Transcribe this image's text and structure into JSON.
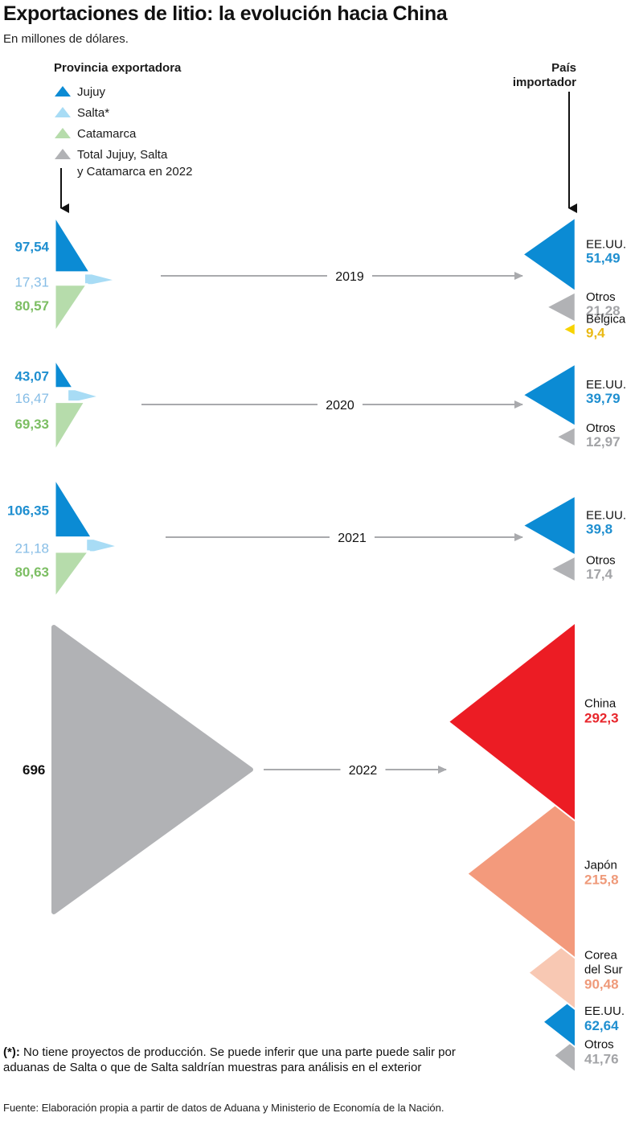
{
  "title": "Exportaciones de litio: la evolución hacia China",
  "subtitle": "En millones de dólares.",
  "legend": {
    "title": "Provincia exportadora",
    "items": [
      {
        "label": "Jujuy",
        "color": "#0b8bd4"
      },
      {
        "label": "Salta*",
        "color": "#a8dcf5"
      },
      {
        "label": "Catamarca",
        "color": "#b6dcab"
      },
      {
        "label": "Total Jujuy, Salta\ny Catamarca en 2022",
        "color": "#b1b2b5"
      }
    ]
  },
  "importer_title": "País\nimportador",
  "chart_data": {
    "type": "flow",
    "years": [
      {
        "year": "2019",
        "exporters": [
          {
            "name": "Jujuy",
            "value": 97.54,
            "label": "97,54",
            "color": "#0b8bd4",
            "text_color": "#1f8fd0"
          },
          {
            "name": "Salta",
            "value": 17.31,
            "label": "17,31",
            "color": "#a8dcf5",
            "text_color": "#86bde6"
          },
          {
            "name": "Catamarca",
            "value": 80.57,
            "label": "80,57",
            "color": "#b6dcab",
            "text_color": "#7cbe63"
          }
        ],
        "importers": [
          {
            "name": "EE.UU.",
            "value": 51.49,
            "label": "51,49",
            "color": "#0b8bd4",
            "text_color": "#1f8fd0"
          },
          {
            "name": "Otros",
            "value": 21.28,
            "label": "21,28",
            "color": "#b1b2b5",
            "text_color": "#a3a4a7"
          },
          {
            "name": "Bélgica",
            "value": 9.4,
            "label": "9,4",
            "color": "#f7d300",
            "text_color": "#eab913"
          }
        ]
      },
      {
        "year": "2020",
        "exporters": [
          {
            "name": "Jujuy",
            "value": 43.07,
            "label": "43,07",
            "color": "#0b8bd4",
            "text_color": "#1f8fd0"
          },
          {
            "name": "Salta",
            "value": 16.47,
            "label": "16,47",
            "color": "#a8dcf5",
            "text_color": "#86bde6"
          },
          {
            "name": "Catamarca",
            "value": 69.33,
            "label": "69,33",
            "color": "#b6dcab",
            "text_color": "#7cbe63"
          }
        ],
        "importers": [
          {
            "name": "EE.UU.",
            "value": 39.79,
            "label": "39,79",
            "color": "#0b8bd4",
            "text_color": "#1f8fd0"
          },
          {
            "name": "Otros",
            "value": 12.97,
            "label": "12,97",
            "color": "#b1b2b5",
            "text_color": "#a3a4a7"
          }
        ]
      },
      {
        "year": "2021",
        "exporters": [
          {
            "name": "Jujuy",
            "value": 106.35,
            "label": "106,35",
            "color": "#0b8bd4",
            "text_color": "#1f8fd0"
          },
          {
            "name": "Salta",
            "value": 21.18,
            "label": "21,18",
            "color": "#a8dcf5",
            "text_color": "#86bde6"
          },
          {
            "name": "Catamarca",
            "value": 80.63,
            "label": "80,63",
            "color": "#b6dcab",
            "text_color": "#7cbe63"
          }
        ],
        "importers": [
          {
            "name": "EE.UU.",
            "value": 39.8,
            "label": "39,8",
            "color": "#0b8bd4",
            "text_color": "#1f8fd0"
          },
          {
            "name": "Otros",
            "value": 17.4,
            "label": "17,4",
            "color": "#b1b2b5",
            "text_color": "#a3a4a7"
          }
        ]
      },
      {
        "year": "2022",
        "exporters": [
          {
            "name": "Total Jujuy, Salta y Catamarca en 2022",
            "value": 696,
            "label": "696",
            "color": "#b1b2b5",
            "text_color": "#111111"
          }
        ],
        "importers": [
          {
            "name": "China",
            "value": 292.3,
            "label": "292,3",
            "color": "#ec1c24",
            "text_color": "#e8262c"
          },
          {
            "name": "Japón",
            "value": 215.8,
            "label": "215,8",
            "color": "#f39a7c",
            "text_color": "#ef9a7a"
          },
          {
            "name": "Corea\ndel Sur",
            "value": 90.48,
            "label": "90,48",
            "color": "#f8c8b3",
            "text_color": "#ef9a7a"
          },
          {
            "name": "EE.UU.",
            "value": 62.64,
            "label": "62,64",
            "color": "#0b8bd4",
            "text_color": "#1f8fd0"
          },
          {
            "name": "Otros",
            "value": 41.76,
            "label": "41,76",
            "color": "#b1b2b5",
            "text_color": "#a3a4a7"
          }
        ]
      }
    ]
  },
  "footnote": {
    "marker": "(*):",
    "text": " No tiene proyectos de producción. Se puede inferir que una parte puede salir por aduanas de Salta o que de Salta saldrían muestras para análisis en el exterior"
  },
  "source": "Fuente: Elaboración propia a partir de datos de Aduana y Ministerio de Economía de la Nación."
}
